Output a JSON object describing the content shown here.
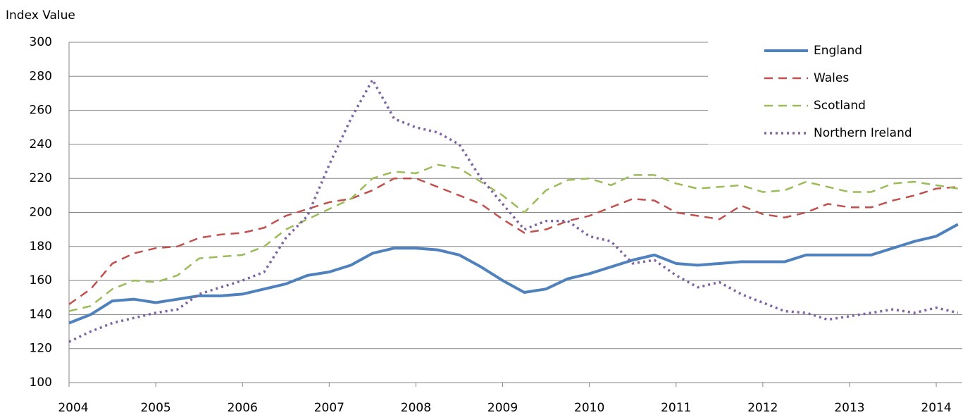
{
  "chart_data": {
    "type": "line",
    "y_label": "Index Value",
    "x": [
      2004,
      2004.25,
      2004.5,
      2004.75,
      2005,
      2005.25,
      2005.5,
      2005.75,
      2006,
      2006.25,
      2006.5,
      2006.75,
      2007,
      2007.25,
      2007.5,
      2007.75,
      2008,
      2008.25,
      2008.5,
      2008.75,
      2009,
      2009.25,
      2009.5,
      2009.75,
      2010,
      2010.25,
      2010.5,
      2010.75,
      2011,
      2011.25,
      2011.5,
      2011.75,
      2012,
      2012.25,
      2012.5,
      2012.75,
      2013,
      2013.25,
      2013.5,
      2013.75,
      2014,
      2014.25
    ],
    "series": [
      {
        "name": "England",
        "color": "#4f81bd",
        "dash": "solid",
        "values": [
          135,
          140,
          148,
          149,
          147,
          149,
          151,
          151,
          152,
          155,
          158,
          163,
          165,
          169,
          176,
          179,
          179,
          178,
          175,
          168,
          160,
          153,
          155,
          161,
          164,
          168,
          172,
          175,
          170,
          169,
          170,
          171,
          171,
          171,
          175,
          175,
          175,
          175,
          179,
          183,
          186,
          193
        ]
      },
      {
        "name": "Wales",
        "color": "#c0504d",
        "dash": "dashed",
        "values": [
          146,
          155,
          170,
          176,
          179,
          180,
          185,
          187,
          188,
          191,
          198,
          202,
          206,
          208,
          213,
          220,
          220,
          215,
          210,
          205,
          196,
          188,
          190,
          195,
          198,
          203,
          208,
          207,
          200,
          198,
          196,
          204,
          199,
          197,
          200,
          205,
          203,
          203,
          207,
          210,
          214,
          215
        ]
      },
      {
        "name": "Scotland",
        "color": "#9bbb59",
        "dash": "dashed",
        "values": [
          142,
          145,
          155,
          160,
          159,
          163,
          173,
          174,
          175,
          180,
          190,
          196,
          202,
          208,
          220,
          224,
          223,
          228,
          226,
          218,
          210,
          200,
          213,
          219,
          220,
          216,
          222,
          222,
          217,
          214,
          215,
          216,
          212,
          213,
          218,
          215,
          212,
          212,
          217,
          218,
          216,
          214
        ]
      },
      {
        "name": "Northern Ireland",
        "color": "#8064a2",
        "dash": "dotted",
        "values": [
          124,
          130,
          135,
          138,
          141,
          143,
          152,
          156,
          160,
          165,
          185,
          198,
          228,
          255,
          278,
          255,
          250,
          247,
          240,
          220,
          205,
          190,
          195,
          195,
          186,
          183,
          170,
          172,
          163,
          156,
          159,
          152,
          147,
          142,
          141,
          137,
          139,
          141,
          143,
          141,
          144,
          141
        ]
      }
    ],
    "xlim": [
      2004,
      2014.3
    ],
    "xticks": [
      2004,
      2005,
      2006,
      2007,
      2008,
      2009,
      2010,
      2011,
      2012,
      2013,
      2014
    ],
    "ylim": [
      100,
      300
    ],
    "yticks": [
      100,
      120,
      140,
      160,
      180,
      200,
      220,
      240,
      260,
      280,
      300
    ],
    "grid": true,
    "legend": "upper right"
  }
}
